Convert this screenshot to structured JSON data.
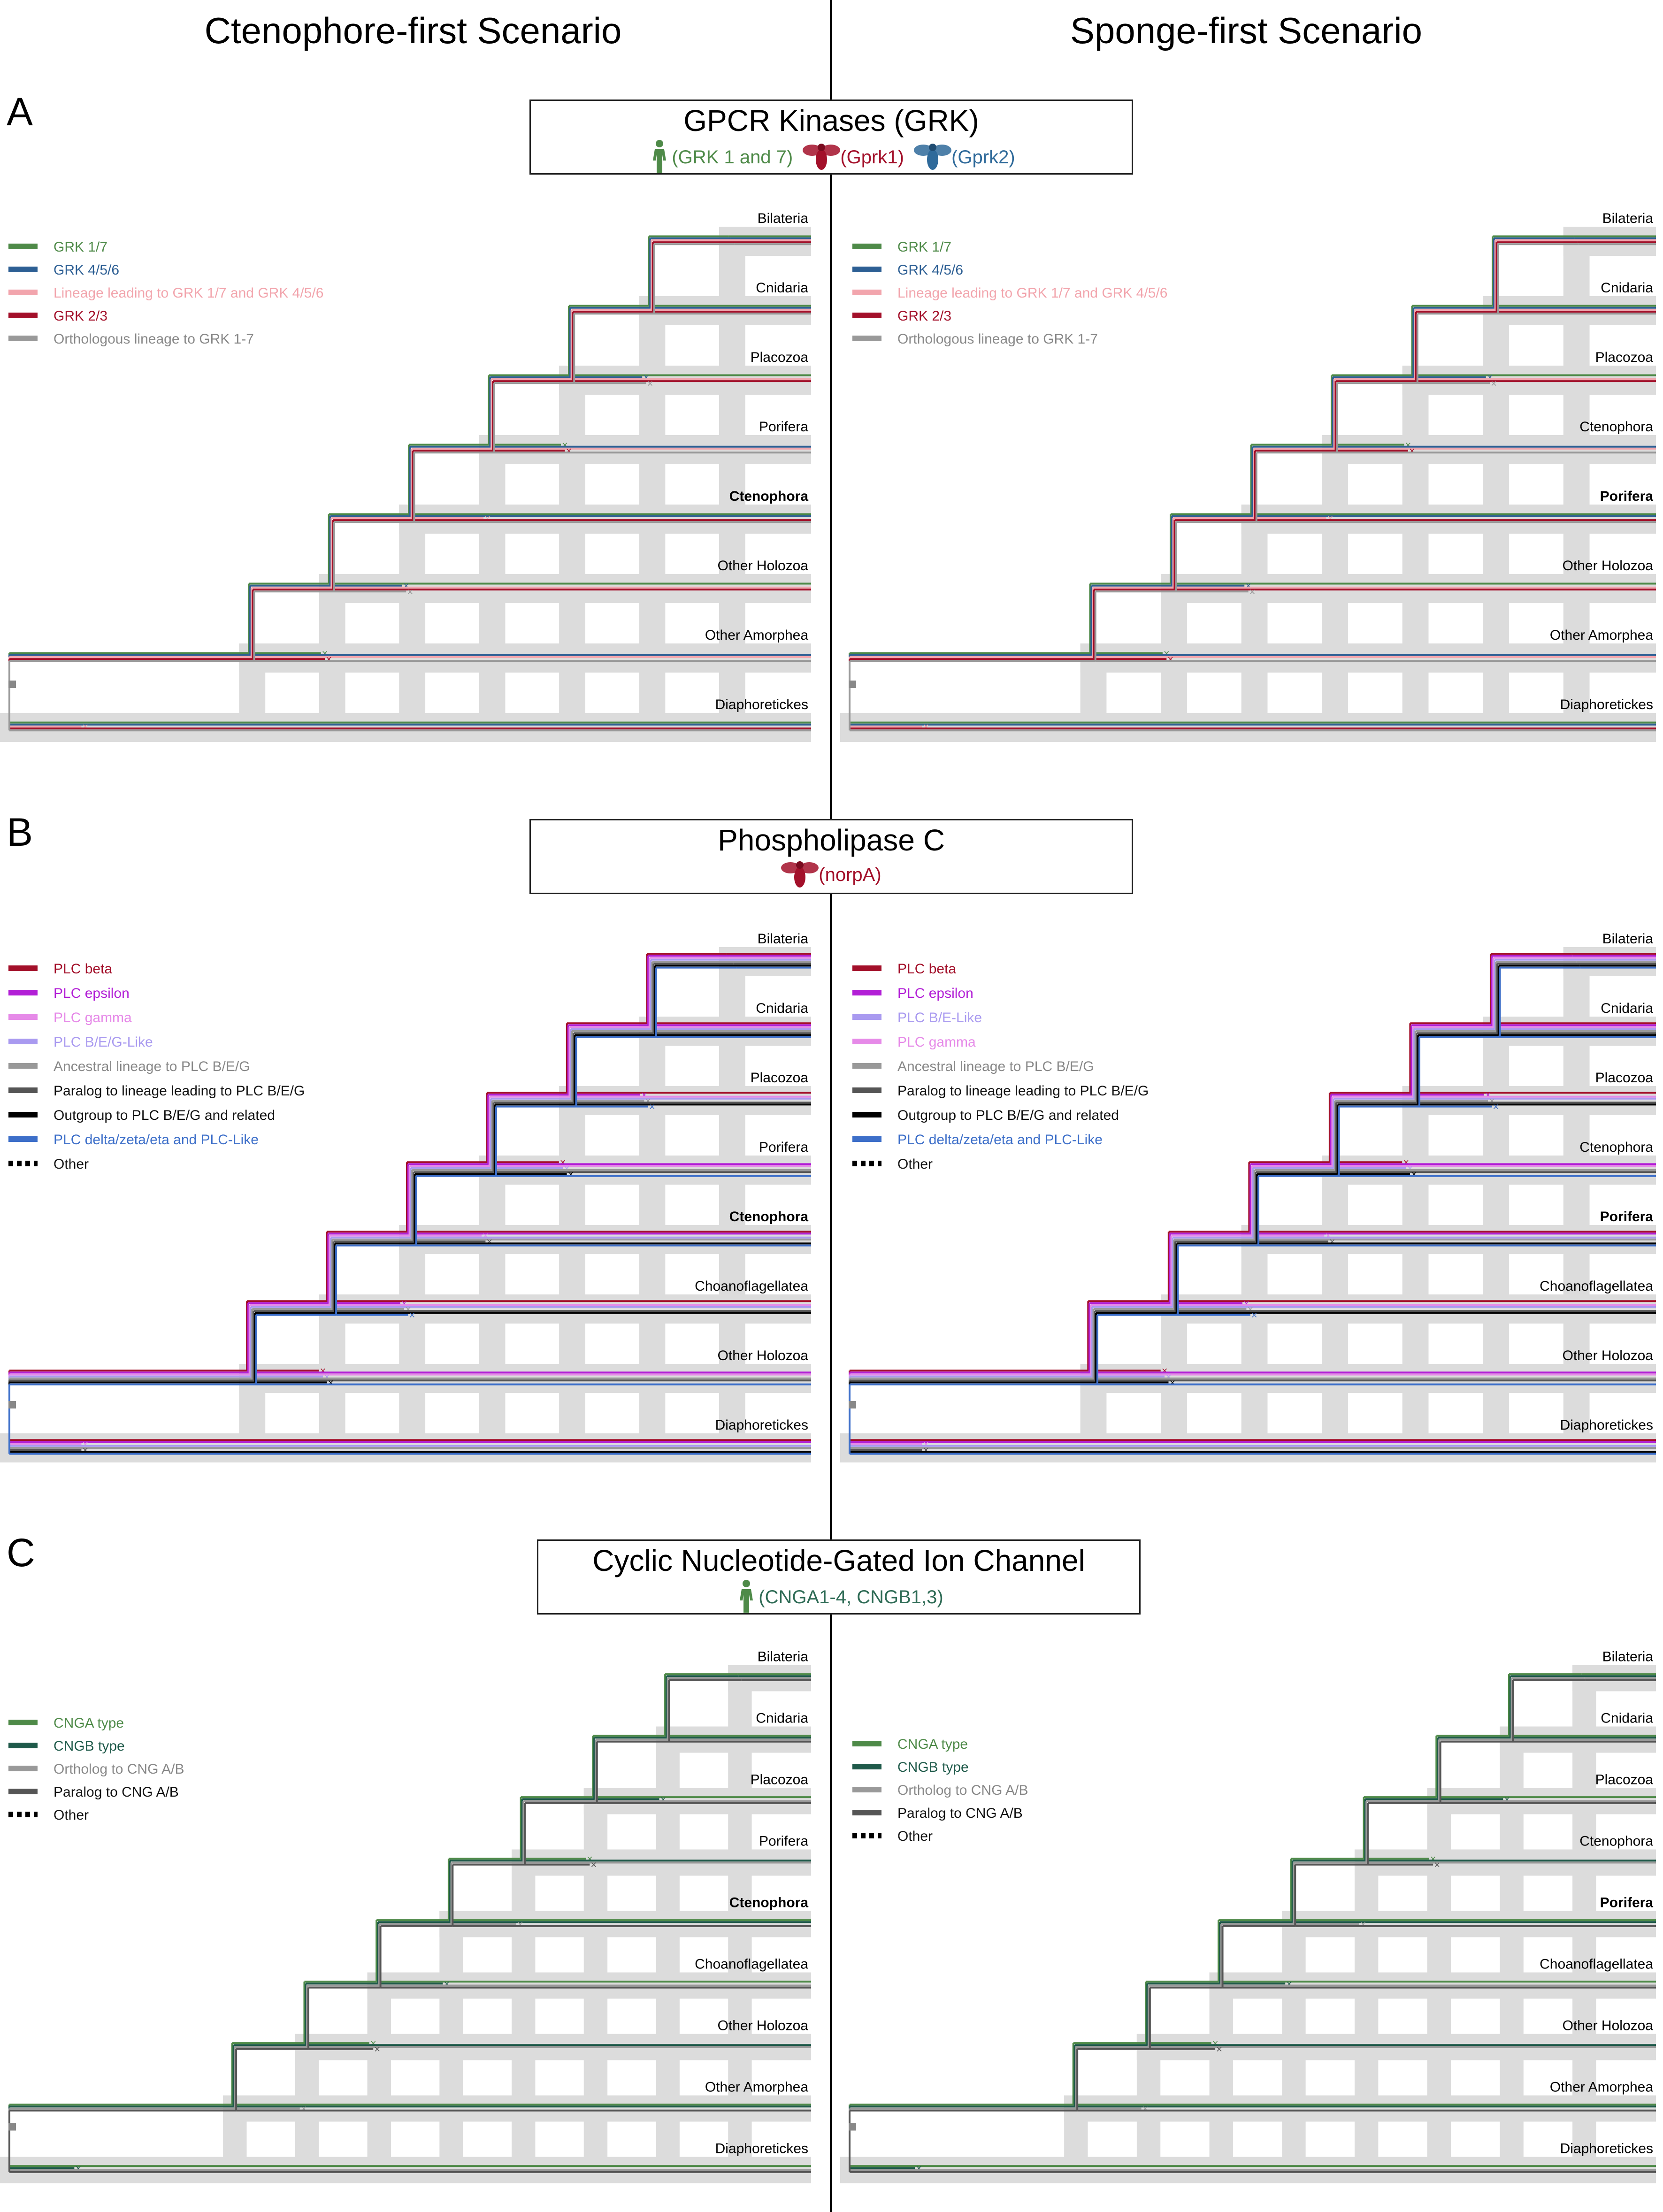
{
  "scenarios": {
    "left_title": "Ctenophore-first Scenario",
    "right_title": "Sponge-first Scenario"
  },
  "colors": {
    "gray_band": "#dcdcdc",
    "blue_band": "#bcd0e6"
  },
  "panels": [
    {
      "letter": "A",
      "gene_title": "GPCR Kinases (GRK)",
      "gene_sub": [
        {
          "icon": "human-icon",
          "text": "(GRK 1 and 7)",
          "color": "#4e8a48"
        },
        {
          "icon": "fly-icon",
          "text": "(Gprk1)",
          "color": "#a3102a"
        },
        {
          "icon": "fly-icon",
          "text": "(Gprk2)",
          "color": "#2f6a9a"
        }
      ],
      "legend": [
        {
          "label": "GRK 1/7",
          "color": "#4e8a48",
          "style": "solid"
        },
        {
          "label": "GRK 4/5/6",
          "color": "#2d5f94",
          "style": "solid"
        },
        {
          "label": "Lineage leading to GRK 1/7 and GRK 4/5/6",
          "color": "#f2a5ad",
          "style": "solid"
        },
        {
          "label": "GRK 2/3",
          "color": "#a3102a",
          "style": "solid"
        },
        {
          "label": "Orthologous lineage to GRK 1-7",
          "color": "#999999",
          "style": "solid"
        }
      ],
      "left_taxa": [
        {
          "label": "Bilateria",
          "bold": false
        },
        {
          "label": "Cnidaria",
          "bold": false
        },
        {
          "label": "Placozoa",
          "bold": false
        },
        {
          "label": "Porifera",
          "bold": false
        },
        {
          "label": "Ctenophora",
          "bold": true
        },
        {
          "label": "Other Holozoa",
          "bold": false
        },
        {
          "label": "Other Amorphea",
          "bold": false
        },
        {
          "label": "Diaphoretickes",
          "bold": false
        }
      ],
      "right_taxa": [
        {
          "label": "Bilateria",
          "bold": false
        },
        {
          "label": "Cnidaria",
          "bold": false
        },
        {
          "label": "Placozoa",
          "bold": false
        },
        {
          "label": "Ctenophora",
          "bold": false
        },
        {
          "label": "Porifera",
          "bold": true
        },
        {
          "label": "Other Holozoa",
          "bold": false
        },
        {
          "label": "Other Amorphea",
          "bold": false
        },
        {
          "label": "Diaphoretickes",
          "bold": false
        }
      ]
    },
    {
      "letter": "B",
      "gene_title": "Phospholipase C",
      "gene_sub": [
        {
          "icon": "fly-icon",
          "text": "(norpA)",
          "color": "#a3102a"
        }
      ],
      "legend": [
        {
          "label": "PLC beta",
          "color": "#a3102a",
          "style": "solid"
        },
        {
          "label": "PLC epsilon",
          "color": "#b21fd6",
          "style": "solid"
        },
        {
          "label": "PLC gamma",
          "color": "#e68ae8",
          "style": "solid"
        },
        {
          "label": "PLC B/E/G-Like",
          "color": "#a99af0",
          "style": "solid"
        },
        {
          "label": "Ancestral lineage to PLC B/E/G",
          "color": "#999999",
          "style": "solid"
        },
        {
          "label": "Paralog to lineage leading to PLC B/E/G",
          "color": "#555555",
          "style": "solid"
        },
        {
          "label": "Outgroup to PLC B/E/G and related",
          "color": "#000000",
          "style": "solid"
        },
        {
          "label": "PLC delta/zeta/eta and PLC-Like",
          "color": "#3d6fc9",
          "style": "solid"
        },
        {
          "label": "Other",
          "color": "#000000",
          "style": "dotted"
        }
      ],
      "right_legend": [
        {
          "label": "PLC beta",
          "color": "#a3102a",
          "style": "solid"
        },
        {
          "label": "PLC epsilon",
          "color": "#b21fd6",
          "style": "solid"
        },
        {
          "label": "PLC B/E-Like",
          "color": "#a99af0",
          "style": "solid"
        },
        {
          "label": "PLC gamma",
          "color": "#e68ae8",
          "style": "solid"
        },
        {
          "label": "Ancestral lineage to PLC B/E/G",
          "color": "#999999",
          "style": "solid"
        },
        {
          "label": "Paralog to lineage leading to PLC B/E/G",
          "color": "#555555",
          "style": "solid"
        },
        {
          "label": "Outgroup to PLC B/E/G and related",
          "color": "#000000",
          "style": "solid"
        },
        {
          "label": "PLC delta/zeta/eta and PLC-Like",
          "color": "#3d6fc9",
          "style": "solid"
        },
        {
          "label": "Other",
          "color": "#000000",
          "style": "dotted"
        }
      ],
      "left_taxa": [
        {
          "label": "Bilateria",
          "bold": false
        },
        {
          "label": "Cnidaria",
          "bold": false
        },
        {
          "label": "Placozoa",
          "bold": false
        },
        {
          "label": "Porifera",
          "bold": false
        },
        {
          "label": "Ctenophora",
          "bold": true
        },
        {
          "label": "Choanoflagellatea",
          "bold": false
        },
        {
          "label": "Other Holozoa",
          "bold": false
        },
        {
          "label": "Diaphoretickes",
          "bold": false
        }
      ],
      "right_taxa": [
        {
          "label": "Bilateria",
          "bold": false
        },
        {
          "label": "Cnidaria",
          "bold": false
        },
        {
          "label": "Placozoa",
          "bold": false
        },
        {
          "label": "Ctenophora",
          "bold": false
        },
        {
          "label": "Porifera",
          "bold": true
        },
        {
          "label": "Choanoflagellatea",
          "bold": false
        },
        {
          "label": "Other Holozoa",
          "bold": false
        },
        {
          "label": "Diaphoretickes",
          "bold": false
        }
      ]
    },
    {
      "letter": "C",
      "gene_title": "Cyclic Nucleotide-Gated Ion Channel",
      "gene_sub": [
        {
          "icon": "human-icon",
          "text": "(CNGA1-4, CNGB1,3)",
          "color": "#2e6b55"
        }
      ],
      "legend": [
        {
          "label": "CNGA type",
          "color": "#4e8a48",
          "style": "solid"
        },
        {
          "label": "CNGB type",
          "color": "#1f5a4a",
          "style": "solid"
        },
        {
          "label": "Ortholog to CNG A/B",
          "color": "#999999",
          "style": "solid"
        },
        {
          "label": "Paralog to CNG A/B",
          "color": "#555555",
          "style": "solid"
        },
        {
          "label": "Other",
          "color": "#000000",
          "style": "dotted"
        }
      ],
      "left_taxa": [
        {
          "label": "Bilateria",
          "bold": false
        },
        {
          "label": "Cnidaria",
          "bold": false
        },
        {
          "label": "Placozoa",
          "bold": false
        },
        {
          "label": "Porifera",
          "bold": false
        },
        {
          "label": "Ctenophora",
          "bold": true
        },
        {
          "label": "Choanoflagellatea",
          "bold": false
        },
        {
          "label": "Other Holozoa",
          "bold": false
        },
        {
          "label": "Other Amorphea",
          "bold": false
        },
        {
          "label": "Diaphoretickes",
          "bold": false
        }
      ],
      "right_taxa": [
        {
          "label": "Bilateria",
          "bold": false
        },
        {
          "label": "Cnidaria",
          "bold": false
        },
        {
          "label": "Placozoa",
          "bold": false
        },
        {
          "label": "Ctenophora",
          "bold": false
        },
        {
          "label": "Porifera",
          "bold": true
        },
        {
          "label": "Choanoflagellatea",
          "bold": false
        },
        {
          "label": "Other Holozoa",
          "bold": false
        },
        {
          "label": "Other Amorphea",
          "bold": false
        },
        {
          "label": "Diaphoretickes",
          "bold": false
        }
      ]
    }
  ]
}
